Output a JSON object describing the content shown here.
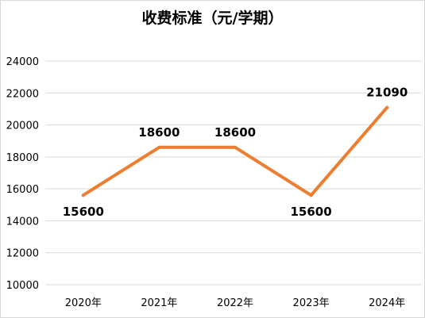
{
  "chart_data": {
    "type": "line",
    "title": "收费标准（元/学期）",
    "xlabel": "",
    "ylabel": "",
    "categories": [
      "2020年",
      "2021年",
      "2022年",
      "2023年",
      "2024年"
    ],
    "series": [
      {
        "values": [
          15600,
          18600,
          18600,
          15600,
          21090
        ]
      }
    ],
    "data_labels": [
      "15600",
      "18600",
      "18600",
      "15600",
      "21090"
    ],
    "ylim": [
      10000,
      24000
    ],
    "yticks": [
      10000,
      12000,
      14000,
      16000,
      18000,
      20000,
      22000,
      24000
    ],
    "grid": true,
    "legend": "none",
    "colors": {
      "line": "#ED7D31",
      "grid": "#D9D9D9",
      "text": "#000000"
    }
  }
}
